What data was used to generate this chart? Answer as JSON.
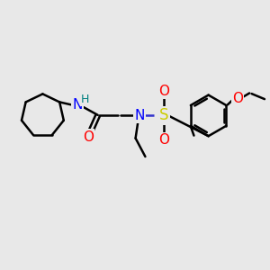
{
  "bg_color": "#e8e8e8",
  "atom_colors": {
    "N": "#0000ff",
    "O": "#ff0000",
    "S": "#cccc00",
    "H": "#008080",
    "C": "#000000"
  },
  "bond_color": "#000000",
  "bond_width": 1.8,
  "font_size_atoms": 11,
  "font_size_small": 9,
  "canvas_xlim": [
    0,
    10
  ],
  "canvas_ylim": [
    0,
    10
  ]
}
